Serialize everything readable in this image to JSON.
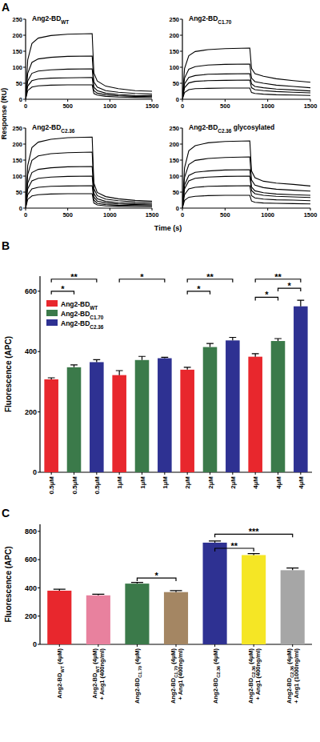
{
  "chart_data": [
    {
      "type": "line",
      "panel": "A",
      "title": [
        "Ang2-BD",
        {
          "sub": "WT"
        }
      ],
      "y_label": "Response (RU)",
      "color": "#000000",
      "x": [
        0,
        25,
        75,
        150,
        300,
        500,
        790,
        810,
        850,
        950,
        1100,
        1300,
        1500
      ],
      "xlim": [
        0,
        1500
      ],
      "xticks": [
        0,
        500,
        1000,
        1500
      ],
      "ylim": [
        0,
        250
      ],
      "yticks": [
        0,
        50,
        100,
        150,
        200,
        250
      ],
      "series": [
        {
          "values": [
            0,
            123,
            174,
            191,
            199,
            203,
            205,
            82,
            57,
            41,
            33,
            27,
            25
          ]
        },
        {
          "values": [
            0,
            81,
            115,
            126,
            131,
            134,
            135,
            54,
            38,
            27,
            22,
            18,
            16
          ]
        },
        {
          "values": [
            0,
            57,
            81,
            88,
            92,
            94,
            95,
            38,
            27,
            19,
            15,
            12,
            11
          ]
        },
        {
          "values": [
            0,
            41,
            58,
            63,
            66,
            67,
            68,
            27,
            19,
            14,
            11,
            9,
            8
          ]
        },
        {
          "values": [
            0,
            27,
            38,
            42,
            44,
            45,
            45,
            18,
            13,
            9,
            7,
            6,
            5
          ]
        }
      ]
    },
    {
      "type": "line",
      "title": [
        "Ang2-BD",
        {
          "sub": "C1.70"
        }
      ],
      "color": "#000000",
      "x": [
        0,
        25,
        75,
        150,
        300,
        500,
        790,
        810,
        850,
        950,
        1100,
        1300,
        1500
      ],
      "xlim": [
        0,
        1500
      ],
      "xticks": [
        0,
        500,
        1000,
        1500
      ],
      "ylim": [
        0,
        250
      ],
      "yticks": [
        0,
        50,
        100,
        150,
        200,
        250
      ],
      "series": [
        {
          "values": [
            0,
            96,
            136,
            149,
            155,
            158,
            160,
            96,
            80,
            72,
            64,
            58,
            53
          ]
        },
        {
          "values": [
            0,
            66,
            94,
            102,
            107,
            109,
            110,
            66,
            55,
            50,
            44,
            40,
            36
          ]
        },
        {
          "values": [
            0,
            48,
            68,
            74,
            78,
            79,
            80,
            48,
            40,
            36,
            32,
            29,
            26
          ]
        },
        {
          "values": [
            0,
            36,
            51,
            56,
            58,
            59,
            60,
            36,
            30,
            27,
            24,
            22,
            20
          ]
        },
        {
          "values": [
            0,
            21,
            30,
            33,
            34,
            35,
            35,
            21,
            18,
            16,
            14,
            13,
            12
          ]
        }
      ]
    },
    {
      "type": "line",
      "title": [
        "Ang2-BD",
        {
          "sub": "C2.36"
        }
      ],
      "x_label": "Time (s)",
      "color": "#000000",
      "x": [
        0,
        25,
        75,
        150,
        300,
        500,
        790,
        810,
        850,
        950,
        1100,
        1300,
        1500
      ],
      "xlim": [
        0,
        1500
      ],
      "xticks": [
        0,
        500,
        1000,
        1500
      ],
      "ylim": [
        0,
        250
      ],
      "yticks": [
        0,
        50,
        100,
        150,
        200,
        250
      ],
      "series": [
        {
          "values": [
            0,
            133,
            189,
            206,
            215,
            220,
            222,
            78,
            49,
            36,
            29,
            24,
            22
          ]
        },
        {
          "values": [
            0,
            105,
            149,
            163,
            170,
            173,
            175,
            61,
            39,
            28,
            23,
            19,
            18
          ]
        },
        {
          "values": [
            0,
            78,
            111,
            121,
            126,
            129,
            130,
            46,
            29,
            21,
            17,
            14,
            13
          ]
        },
        {
          "values": [
            0,
            60,
            85,
            93,
            97,
            99,
            100,
            35,
            22,
            16,
            13,
            11,
            10
          ]
        },
        {
          "values": [
            0,
            42,
            60,
            65,
            68,
            69,
            70,
            25,
            15,
            11,
            9,
            8,
            7
          ]
        },
        {
          "values": [
            0,
            27,
            38,
            42,
            44,
            45,
            45,
            16,
            10,
            7,
            6,
            5,
            5
          ]
        }
      ]
    },
    {
      "type": "line",
      "title": [
        "Ang2-BD",
        {
          "sub": "C2.36"
        },
        " glycosylated"
      ],
      "color": "#000000",
      "x": [
        0,
        25,
        75,
        150,
        300,
        500,
        790,
        810,
        850,
        950,
        1100,
        1300,
        1500
      ],
      "xlim": [
        0,
        1500
      ],
      "xticks": [
        0,
        500,
        1000,
        1500
      ],
      "ylim": [
        0,
        250
      ],
      "yticks": [
        0,
        50,
        100,
        150,
        200,
        250
      ],
      "series": [
        {
          "values": [
            0,
            126,
            179,
            195,
            204,
            208,
            210,
            116,
            95,
            84,
            78,
            74,
            69
          ]
        },
        {
          "values": [
            0,
            96,
            136,
            149,
            155,
            158,
            160,
            88,
            72,
            64,
            59,
            56,
            53
          ]
        },
        {
          "values": [
            0,
            72,
            102,
            112,
            116,
            119,
            120,
            66,
            54,
            48,
            44,
            42,
            40
          ]
        },
        {
          "values": [
            0,
            60,
            85,
            93,
            97,
            99,
            100,
            55,
            45,
            40,
            37,
            35,
            33
          ]
        },
        {
          "values": [
            0,
            42,
            60,
            65,
            68,
            69,
            70,
            39,
            32,
            28,
            26,
            25,
            23
          ]
        },
        {
          "values": [
            0,
            24,
            34,
            37,
            39,
            40,
            40,
            22,
            18,
            16,
            15,
            14,
            13
          ]
        }
      ]
    },
    {
      "type": "bar",
      "panel": "B",
      "y_label": "Fluorescence (APC)",
      "legend": "upper left",
      "categories": [
        "0.5µM",
        "1µM",
        "2µM",
        "4µM"
      ],
      "ylim": [
        0,
        650
      ],
      "yticks": [
        0,
        200,
        400,
        600
      ],
      "series": [
        {
          "name": [
            "Ang2-BD",
            {
              "sub": "WT"
            }
          ],
          "color": "#e8272d",
          "values": [
            308,
            322,
            340,
            383
          ],
          "errors": [
            5,
            15,
            8,
            10
          ]
        },
        {
          "name": [
            "Ang2-BD",
            {
              "sub": "C1.70"
            }
          ],
          "color": "#3b7a4a",
          "values": [
            348,
            372,
            415,
            435
          ],
          "errors": [
            8,
            12,
            12,
            8
          ]
        },
        {
          "name": [
            "Ang2-BD",
            {
              "sub": "C2.36"
            }
          ],
          "color": "#2e3192",
          "values": [
            365,
            378,
            437,
            550
          ],
          "errors": [
            8,
            3,
            10,
            20
          ]
        }
      ],
      "annotations": [
        {
          "text": "**",
          "from": 0,
          "to": 2,
          "y": 640
        },
        {
          "text": "*",
          "from": 0,
          "to": 1,
          "y": 600
        },
        {
          "text": "*",
          "from": 3,
          "to": 5,
          "y": 640
        },
        {
          "text": "**",
          "from": 6,
          "to": 8,
          "y": 640
        },
        {
          "text": "*",
          "from": 6,
          "to": 7,
          "y": 600
        },
        {
          "text": "**",
          "from": 9,
          "to": 11,
          "y": 640
        },
        {
          "text": "*",
          "from": 10,
          "to": 11,
          "y": 610
        },
        {
          "text": "*",
          "from": 9,
          "to": 10,
          "y": 580
        }
      ]
    },
    {
      "type": "bar",
      "panel": "C",
      "y_label": "Fluorescence (APC)",
      "categories": [
        [
          [
            "Ang2-BD",
            {
              "sub": "WT"
            },
            " (4µM)"
          ]
        ],
        [
          [
            "Ang2-BD",
            {
              "sub": "WT"
            },
            " (4µM)"
          ],
          "+ Ang1 (400ng/ml)"
        ],
        [
          [
            "Ang2-BD",
            {
              "sub": "C1.70"
            },
            " (4µM)"
          ]
        ],
        [
          [
            "Ang2-BD",
            {
              "sub": "C1.70"
            },
            " (4µM)"
          ],
          "+ Ang1 (400ng/ml)"
        ],
        [
          [
            "Ang2-BD",
            {
              "sub": "C2.36"
            },
            " (4µM)"
          ]
        ],
        [
          [
            "Ang2-BD",
            {
              "sub": "C2.36"
            },
            " (4µM)"
          ],
          "+ Ang1 (400ng/ml)"
        ],
        [
          [
            "Ang2-BD",
            {
              "sub": "C2.36"
            },
            " (4µM)"
          ],
          "+ Ang1 (1000ng/ml)"
        ]
      ],
      "values": [
        380,
        347,
        430,
        370,
        720,
        632,
        525
      ],
      "errors": [
        10,
        8,
        8,
        10,
        12,
        10,
        15
      ],
      "colors": [
        "#e8272d",
        "#e8819e",
        "#3b7a4a",
        "#a48663",
        "#2e3192",
        "#f5e625",
        "#a6a6a6"
      ],
      "ylim": [
        0,
        850
      ],
      "yticks": [
        0,
        200,
        400,
        600,
        800
      ],
      "annotations": [
        {
          "text": "*",
          "from": 2,
          "to": 3,
          "y": 470
        },
        {
          "text": "**",
          "from": 4,
          "to": 5,
          "y": 680
        },
        {
          "text": "***",
          "from": 4,
          "to": 6,
          "y": 780
        }
      ]
    }
  ]
}
